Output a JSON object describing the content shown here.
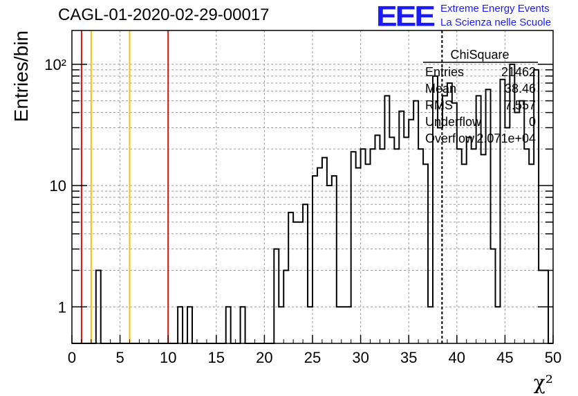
{
  "header": {
    "title": "CAGL-01-2020-02-29-00017",
    "logo_text": "EEE",
    "logo_line1": "Extreme Energy Events",
    "logo_line2": "La Scienza nelle Scuole",
    "logo_color": "#1a1aff"
  },
  "chart_data": {
    "type": "bar",
    "histogram": true,
    "xlabel": "χ²",
    "ylabel": "Entries/bin",
    "xlim": [
      0,
      50
    ],
    "ylim": [
      0.5,
      190
    ],
    "yscale": "log",
    "grid": true,
    "x_ticks": [
      0,
      5,
      10,
      15,
      20,
      25,
      30,
      35,
      40,
      45,
      50
    ],
    "x_tick_labels": [
      "0",
      "5",
      "10",
      "15",
      "20",
      "25",
      "30",
      "35",
      "40",
      "45",
      "50"
    ],
    "y_tick_labels": [
      "1",
      "10",
      "10²"
    ],
    "bin_width": 0.5,
    "bins": [
      {
        "x": 2.5,
        "y": 2
      },
      {
        "x": 11.0,
        "y": 1
      },
      {
        "x": 12.0,
        "y": 1
      },
      {
        "x": 16.0,
        "y": 1
      },
      {
        "x": 17.5,
        "y": 1
      },
      {
        "x": 21.0,
        "y": 3
      },
      {
        "x": 21.5,
        "y": 1
      },
      {
        "x": 22.0,
        "y": 2
      },
      {
        "x": 22.5,
        "y": 6
      },
      {
        "x": 23.0,
        "y": 5
      },
      {
        "x": 23.5,
        "y": 5
      },
      {
        "x": 24.0,
        "y": 7
      },
      {
        "x": 24.5,
        "y": 1
      },
      {
        "x": 25.0,
        "y": 12
      },
      {
        "x": 25.5,
        "y": 14
      },
      {
        "x": 26.0,
        "y": 17
      },
      {
        "x": 26.5,
        "y": 10
      },
      {
        "x": 27.0,
        "y": 12
      },
      {
        "x": 27.5,
        "y": 1
      },
      {
        "x": 28.0,
        "y": 1
      },
      {
        "x": 28.5,
        "y": 1
      },
      {
        "x": 29.0,
        "y": 19
      },
      {
        "x": 29.5,
        "y": 14
      },
      {
        "x": 30.0,
        "y": 20
      },
      {
        "x": 30.5,
        "y": 15
      },
      {
        "x": 31.0,
        "y": 20
      },
      {
        "x": 31.5,
        "y": 26
      },
      {
        "x": 32.0,
        "y": 20
      },
      {
        "x": 32.5,
        "y": 55
      },
      {
        "x": 33.0,
        "y": 25
      },
      {
        "x": 33.5,
        "y": 20
      },
      {
        "x": 34.0,
        "y": 41
      },
      {
        "x": 34.5,
        "y": 25
      },
      {
        "x": 35.0,
        "y": 35
      },
      {
        "x": 35.5,
        "y": 50
      },
      {
        "x": 36.0,
        "y": 20
      },
      {
        "x": 36.5,
        "y": 15
      },
      {
        "x": 37.0,
        "y": 1
      },
      {
        "x": 37.5,
        "y": 80
      },
      {
        "x": 38.0,
        "y": 30
      },
      {
        "x": 38.5,
        "y": 55
      },
      {
        "x": 39.0,
        "y": 70
      },
      {
        "x": 39.5,
        "y": 48
      },
      {
        "x": 40.0,
        "y": 20
      },
      {
        "x": 40.5,
        "y": 15
      },
      {
        "x": 41.0,
        "y": 25
      },
      {
        "x": 41.5,
        "y": 20
      },
      {
        "x": 42.0,
        "y": 55
      },
      {
        "x": 42.5,
        "y": 18
      },
      {
        "x": 43.0,
        "y": 62
      },
      {
        "x": 43.5,
        "y": 3
      },
      {
        "x": 44.0,
        "y": 1
      },
      {
        "x": 44.5,
        "y": 75
      },
      {
        "x": 45.0,
        "y": 30
      },
      {
        "x": 45.5,
        "y": 100
      },
      {
        "x": 46.0,
        "y": 40
      },
      {
        "x": 46.5,
        "y": 50
      },
      {
        "x": 47.0,
        "y": 20
      },
      {
        "x": 47.5,
        "y": 15
      },
      {
        "x": 48.0,
        "y": 90
      },
      {
        "x": 48.5,
        "y": 2
      },
      {
        "x": 49.0,
        "y": 2
      }
    ],
    "vertical_lines": [
      {
        "x": 1,
        "color": "#dd1111",
        "style": "solid"
      },
      {
        "x": 2,
        "color": "#f2c500",
        "style": "solid"
      },
      {
        "x": 6,
        "color": "#f2c500",
        "style": "solid"
      },
      {
        "x": 10,
        "color": "#dd1111",
        "style": "solid"
      },
      {
        "x": 38.46,
        "color": "#000000",
        "style": "dashed"
      }
    ],
    "stats_box": {
      "title": "ChiSquare",
      "rows": [
        {
          "label": "Entries",
          "value": "21462"
        },
        {
          "label": "Mean",
          "value": "38.46"
        },
        {
          "label": "RMS",
          "value": "7.557"
        },
        {
          "label": "Underflow",
          "value": "0"
        },
        {
          "label": "Overflow",
          "value": "2.071e+04"
        }
      ]
    }
  }
}
